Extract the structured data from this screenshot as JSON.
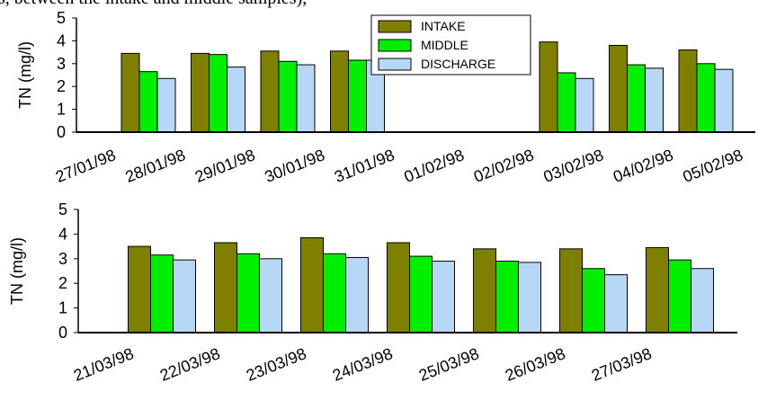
{
  "caption_fragment": "s, between the intake and middle samples),",
  "chart_data": [
    {
      "type": "bar",
      "y_label": "TN (mg/l)",
      "categories": [
        "27/01/98",
        "28/01/98",
        "29/01/98",
        "30/01/98",
        "31/01/98",
        "01/02/98",
        "02/02/98",
        "03/02/98",
        "04/02/98",
        "05/02/98"
      ],
      "series": [
        {
          "name": "INTAKE",
          "color": "#7f7f00",
          "values": [
            3.45,
            3.45,
            3.55,
            3.55,
            null,
            null,
            3.95,
            3.8,
            3.6,
            null
          ]
        },
        {
          "name": "MIDDLE",
          "color": "#00ee00",
          "values": [
            2.65,
            3.4,
            3.1,
            3.15,
            null,
            null,
            2.6,
            2.95,
            3.0,
            null
          ]
        },
        {
          "name": "DISCHARGE",
          "color": "#b7d7f7",
          "values": [
            2.35,
            2.85,
            2.95,
            3.15,
            null,
            null,
            2.35,
            2.8,
            2.75,
            null
          ]
        }
      ],
      "ylim": [
        0,
        5
      ],
      "yticks": [
        0,
        1,
        2,
        3,
        4,
        5
      ],
      "legend": "top"
    },
    {
      "type": "bar",
      "y_label": "TN (mg/l)",
      "categories": [
        "21/03/98",
        "22/03/98",
        "23/03/98",
        "24/03/98",
        "25/03/98",
        "26/03/98",
        "27/03/98"
      ],
      "series": [
        {
          "color": "#7f7f00",
          "values": [
            3.5,
            3.65,
            3.85,
            3.65,
            3.4,
            3.4,
            3.45
          ]
        },
        {
          "color": "#00ee00",
          "values": [
            3.15,
            3.2,
            3.2,
            3.1,
            2.9,
            2.6,
            2.95
          ]
        },
        {
          "color": "#b7d7f7",
          "values": [
            2.95,
            3.0,
            3.05,
            2.9,
            2.85,
            2.35,
            2.6
          ]
        }
      ],
      "ylim": [
        0,
        5
      ],
      "yticks": [
        0,
        1,
        2,
        3,
        4,
        5
      ]
    }
  ]
}
